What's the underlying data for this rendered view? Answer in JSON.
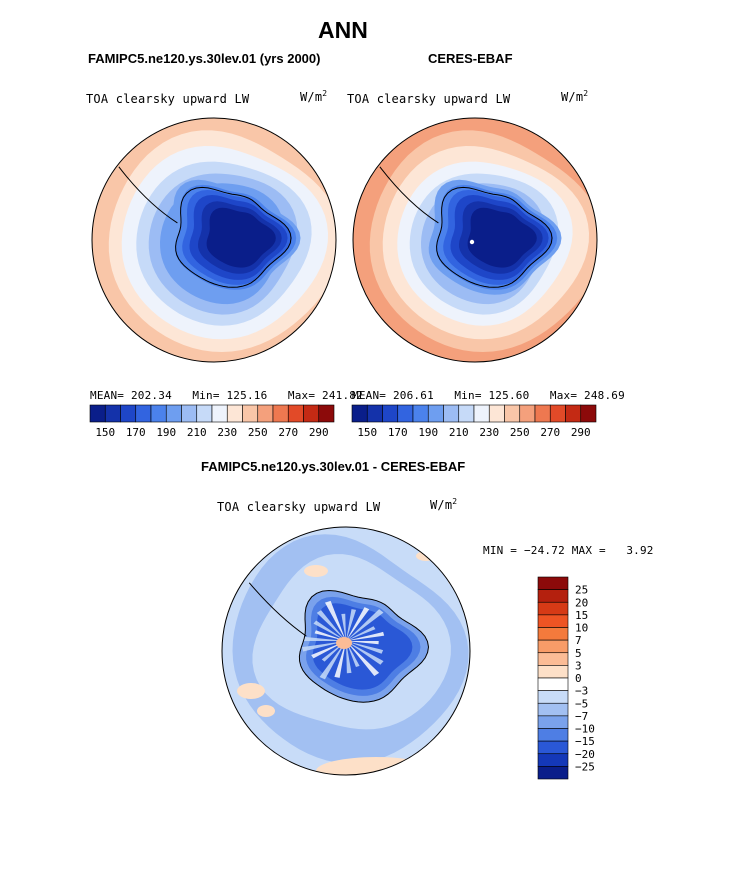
{
  "title": "ANN",
  "panels": [
    {
      "id": "model",
      "subtitle": "FAMIPC5.ne120.ys.30lev.01 (yrs 2000)",
      "variable": "TOA clearsky upward LW",
      "units": "W/m",
      "units_exp": "2",
      "mean_label": "MEAN=",
      "mean": "202.34",
      "min_label": "Min=",
      "min": "125.16",
      "max_label": "Max=",
      "max": "241.82"
    },
    {
      "id": "obs",
      "subtitle": "CERES-EBAF",
      "variable": "TOA clearsky upward LW",
      "units": "W/m",
      "units_exp": "2",
      "mean_label": "MEAN=",
      "mean": "206.61",
      "min_label": "Min=",
      "min": "125.60",
      "max_label": "Max=",
      "max": "248.69"
    }
  ],
  "diff": {
    "subtitle": "FAMIPC5.ne120.ys.30lev.01 - CERES-EBAF",
    "variable": "TOA clearsky upward LW",
    "units": "W/m",
    "units_exp": "2",
    "min_label": "MIN =",
    "min": "−24.72",
    "max_label": "MAX =",
    "max": "3.92"
  },
  "chart_data": [
    {
      "type": "heatmap",
      "projection": "south-polar-stereographic",
      "title": "FAMIPC5.ne120.ys.30lev.01 (yrs 2000)",
      "variable": "TOA clearsky upward LW",
      "units": "W/m^2",
      "stats": {
        "mean": 202.34,
        "min": 125.16,
        "max": 241.82
      },
      "colorbar_levels": [
        150,
        160,
        170,
        180,
        190,
        200,
        210,
        220,
        230,
        240,
        250,
        260,
        270,
        280,
        290
      ],
      "colorbar_tick_labels": [
        "150",
        "170",
        "190",
        "210",
        "230",
        "250",
        "270",
        "290"
      ],
      "colors": [
        "#0a1e8a",
        "#1432aa",
        "#1e46c8",
        "#3264e0",
        "#4b82ec",
        "#6e9ef0",
        "#9cbcf4",
        "#c6daf8",
        "#eef3fc",
        "#fde6d6",
        "#f9c6a8",
        "#f4a07c",
        "#ee7850",
        "#e24a28",
        "#c42a14",
        "#8c0a0a"
      ]
    },
    {
      "type": "heatmap",
      "projection": "south-polar-stereographic",
      "title": "CERES-EBAF",
      "variable": "TOA clearsky upward LW",
      "units": "W/m^2",
      "stats": {
        "mean": 206.61,
        "min": 125.6,
        "max": 248.69
      },
      "colorbar_levels": [
        150,
        160,
        170,
        180,
        190,
        200,
        210,
        220,
        230,
        240,
        250,
        260,
        270,
        280,
        290
      ],
      "colorbar_tick_labels": [
        "150",
        "170",
        "190",
        "210",
        "230",
        "250",
        "270",
        "290"
      ],
      "colors": [
        "#0a1e8a",
        "#1432aa",
        "#1e46c8",
        "#3264e0",
        "#4b82ec",
        "#6e9ef0",
        "#9cbcf4",
        "#c6daf8",
        "#eef3fc",
        "#fde6d6",
        "#f9c6a8",
        "#f4a07c",
        "#ee7850",
        "#e24a28",
        "#c42a14",
        "#8c0a0a"
      ]
    },
    {
      "type": "heatmap",
      "projection": "south-polar-stereographic",
      "title": "FAMIPC5.ne120.ys.30lev.01 - CERES-EBAF",
      "variable": "TOA clearsky upward LW",
      "units": "W/m^2",
      "stats": {
        "min": -24.72,
        "max": 3.92
      },
      "colorbar_levels": [
        "25",
        "20",
        "15",
        "10",
        "7",
        "5",
        "3",
        "0",
        "−3",
        "−5",
        "−7",
        "−10",
        "−15",
        "−20",
        "−25"
      ],
      "colors": [
        "#8c0a0a",
        "#b4200e",
        "#d63a16",
        "#ee5424",
        "#f47a3c",
        "#f89c68",
        "#fbbc96",
        "#fde0c8",
        "#ffffff",
        "#c8dcf8",
        "#a2c0f2",
        "#7aa2ec",
        "#4e7ee4",
        "#2a58d6",
        "#1438b8",
        "#0a1e8a"
      ]
    }
  ]
}
